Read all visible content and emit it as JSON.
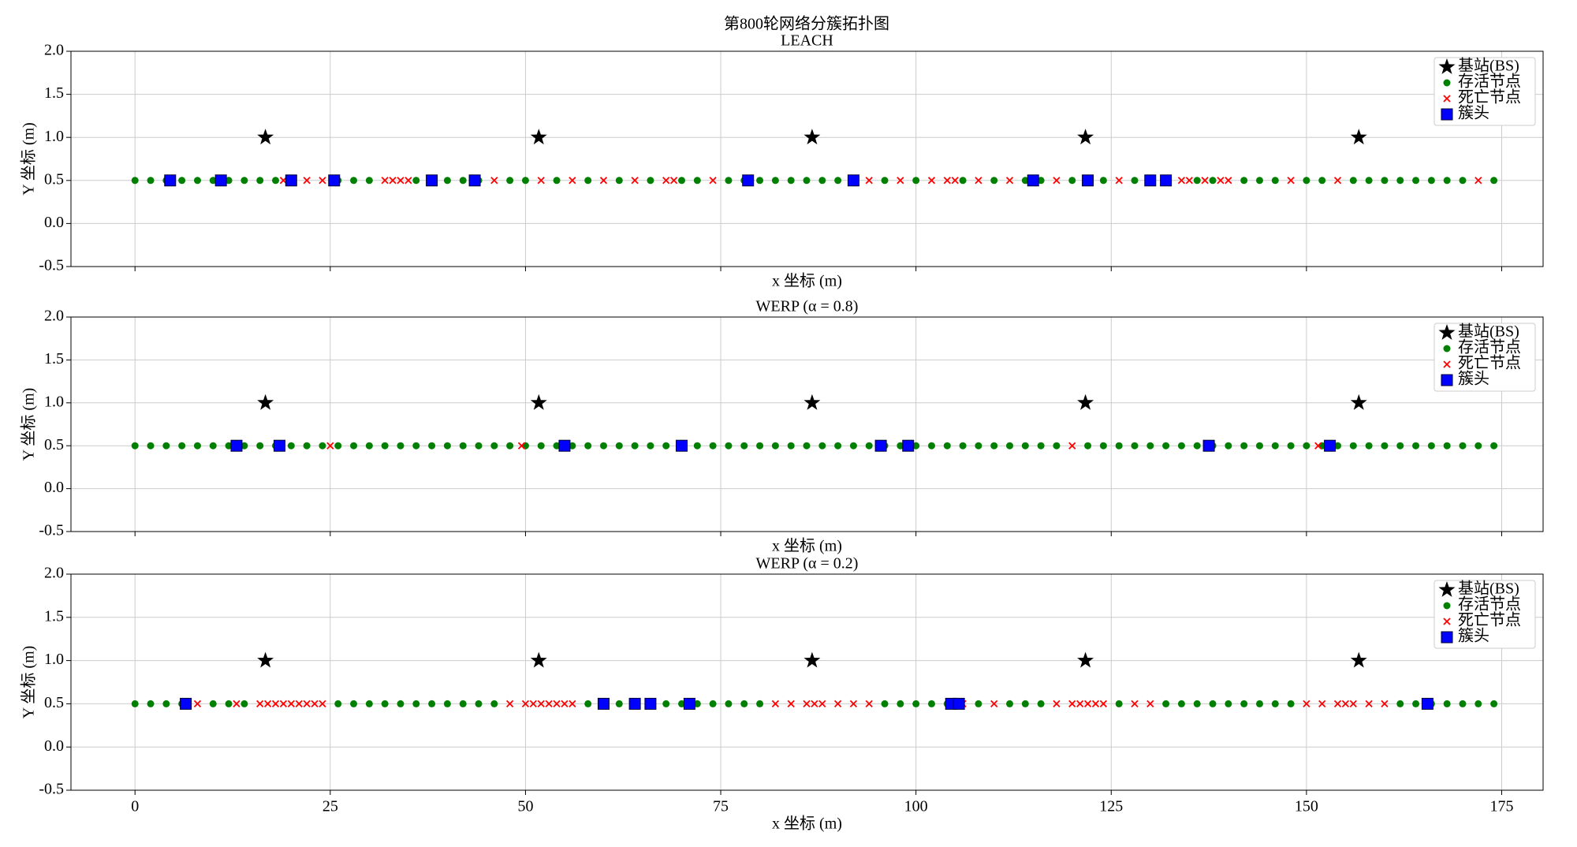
{
  "title": "第800轮网络分簇拓扑图",
  "chart_data": [
    {
      "type": "scatter",
      "title": "LEACH",
      "x_label": "x 坐标 (m)",
      "y_label": "Y 坐标 (m)",
      "xlim": [
        -8.2,
        180.3
      ],
      "xticks": [
        0,
        25,
        50,
        75,
        100,
        125,
        150,
        175
      ],
      "show_xtick_labels": false,
      "ylim": [
        -0.5,
        2.0
      ],
      "yticks": [
        {
          "value": -0.5,
          "label": "-0.5"
        },
        {
          "value": 0,
          "label": "0.0"
        },
        {
          "value": 0.5,
          "label": "0.5"
        },
        {
          "value": 1,
          "label": "1.0"
        },
        {
          "value": 1.5,
          "label": "1.5"
        },
        {
          "value": 2,
          "label": "2.0"
        }
      ],
      "grid": true,
      "legend": "upper right",
      "series": [
        {
          "name": "基站(BS)",
          "color": "#000000",
          "marker": "star",
          "x": [
            16.7,
            51.7,
            86.7,
            121.7,
            156.7
          ],
          "y": [
            1,
            1,
            1,
            1,
            1
          ]
        },
        {
          "name": "存活节点",
          "color": "#008000",
          "marker": "circle",
          "x": [
            0,
            2,
            4,
            6,
            8,
            10,
            12,
            14,
            16,
            18,
            20,
            26,
            28,
            30,
            36,
            38,
            40,
            42,
            44,
            48,
            50,
            54,
            58,
            62,
            66,
            70,
            72,
            76,
            78,
            80,
            82,
            84,
            86,
            88,
            90,
            92,
            96,
            100,
            106,
            110,
            114,
            116,
            120,
            122,
            124,
            128,
            130,
            132,
            136,
            138,
            142,
            144,
            146,
            150,
            152,
            156,
            158,
            160,
            162,
            164,
            166,
            168,
            170,
            174
          ],
          "y": [
            0.5,
            0.5,
            0.5,
            0.5,
            0.5,
            0.5,
            0.5,
            0.5,
            0.5,
            0.5,
            0.5,
            0.5,
            0.5,
            0.5,
            0.5,
            0.5,
            0.5,
            0.5,
            0.5,
            0.5,
            0.5,
            0.5,
            0.5,
            0.5,
            0.5,
            0.5,
            0.5,
            0.5,
            0.5,
            0.5,
            0.5,
            0.5,
            0.5,
            0.5,
            0.5,
            0.5,
            0.5,
            0.5,
            0.5,
            0.5,
            0.5,
            0.5,
            0.5,
            0.5,
            0.5,
            0.5,
            0.5,
            0.5,
            0.5,
            0.5,
            0.5,
            0.5,
            0.5,
            0.5,
            0.5,
            0.5,
            0.5,
            0.5,
            0.5,
            0.5,
            0.5,
            0.5,
            0.5,
            0.5
          ]
        },
        {
          "name": "死亡节点",
          "color": "#ff0000",
          "marker": "x",
          "x": [
            19,
            22,
            24,
            32,
            33,
            34,
            35,
            46,
            52,
            56,
            60,
            64,
            68,
            69,
            74,
            94,
            98,
            102,
            104,
            105,
            108,
            112,
            118,
            126,
            134,
            135,
            137,
            139,
            140,
            148,
            154,
            172
          ],
          "y": [
            0.5,
            0.5,
            0.5,
            0.5,
            0.5,
            0.5,
            0.5,
            0.5,
            0.5,
            0.5,
            0.5,
            0.5,
            0.5,
            0.5,
            0.5,
            0.5,
            0.5,
            0.5,
            0.5,
            0.5,
            0.5,
            0.5,
            0.5,
            0.5,
            0.5,
            0.5,
            0.5,
            0.5,
            0.5,
            0.5,
            0.5,
            0.5
          ]
        },
        {
          "name": "簇头",
          "color": "#0000ff",
          "marker": "square",
          "x": [
            4.5,
            11,
            20,
            25.5,
            38,
            43.5,
            78.5,
            92,
            115,
            122,
            130,
            132
          ],
          "y": [
            0.5,
            0.5,
            0.5,
            0.5,
            0.5,
            0.5,
            0.5,
            0.5,
            0.5,
            0.5,
            0.5,
            0.5
          ]
        }
      ]
    },
    {
      "type": "scatter",
      "title": "WERP (α = 0.8)",
      "x_label": "x 坐标 (m)",
      "y_label": "Y 坐标 (m)",
      "xlim": [
        -8.2,
        180.3
      ],
      "xticks": [
        0,
        25,
        50,
        75,
        100,
        125,
        150,
        175
      ],
      "show_xtick_labels": false,
      "ylim": [
        -0.5,
        2.0
      ],
      "yticks": [
        {
          "value": -0.5,
          "label": "-0.5"
        },
        {
          "value": 0,
          "label": "0.0"
        },
        {
          "value": 0.5,
          "label": "0.5"
        },
        {
          "value": 1,
          "label": "1.0"
        },
        {
          "value": 1.5,
          "label": "1.5"
        },
        {
          "value": 2,
          "label": "2.0"
        }
      ],
      "grid": true,
      "legend": "upper right",
      "series": [
        {
          "name": "基站(BS)",
          "color": "#000000",
          "marker": "star",
          "x": [
            16.7,
            51.7,
            86.7,
            121.7,
            156.7
          ],
          "y": [
            1,
            1,
            1,
            1,
            1
          ]
        },
        {
          "name": "存活节点",
          "color": "#008000",
          "marker": "circle",
          "x": [
            0,
            2,
            4,
            6,
            8,
            10,
            12,
            14,
            16,
            18,
            20,
            22,
            24,
            26,
            28,
            30,
            32,
            34,
            36,
            38,
            40,
            42,
            44,
            46,
            48,
            50,
            52,
            54,
            56,
            58,
            60,
            62,
            64,
            66,
            68,
            70,
            72,
            74,
            76,
            78,
            80,
            82,
            84,
            86,
            88,
            90,
            92,
            94,
            96,
            98,
            100,
            102,
            104,
            106,
            108,
            110,
            112,
            114,
            116,
            118,
            122,
            124,
            126,
            128,
            130,
            132,
            134,
            136,
            138,
            140,
            142,
            144,
            146,
            148,
            150,
            152,
            154,
            156,
            158,
            160,
            162,
            164,
            166,
            168,
            170,
            172,
            174
          ],
          "y": [
            0.5,
            0.5,
            0.5,
            0.5,
            0.5,
            0.5,
            0.5,
            0.5,
            0.5,
            0.5,
            0.5,
            0.5,
            0.5,
            0.5,
            0.5,
            0.5,
            0.5,
            0.5,
            0.5,
            0.5,
            0.5,
            0.5,
            0.5,
            0.5,
            0.5,
            0.5,
            0.5,
            0.5,
            0.5,
            0.5,
            0.5,
            0.5,
            0.5,
            0.5,
            0.5,
            0.5,
            0.5,
            0.5,
            0.5,
            0.5,
            0.5,
            0.5,
            0.5,
            0.5,
            0.5,
            0.5,
            0.5,
            0.5,
            0.5,
            0.5,
            0.5,
            0.5,
            0.5,
            0.5,
            0.5,
            0.5,
            0.5,
            0.5,
            0.5,
            0.5,
            0.5,
            0.5,
            0.5,
            0.5,
            0.5,
            0.5,
            0.5,
            0.5,
            0.5,
            0.5,
            0.5,
            0.5,
            0.5,
            0.5,
            0.5,
            0.5,
            0.5,
            0.5,
            0.5,
            0.5,
            0.5,
            0.5,
            0.5,
            0.5,
            0.5,
            0.5,
            0.5
          ]
        },
        {
          "name": "死亡节点",
          "color": "#ff0000",
          "marker": "x",
          "x": [
            25,
            49.5,
            120,
            151.5
          ],
          "y": [
            0.5,
            0.5,
            0.5,
            0.5
          ]
        },
        {
          "name": "簇头",
          "color": "#0000ff",
          "marker": "square",
          "x": [
            13,
            18.5,
            55,
            70,
            95.5,
            99,
            137.5,
            153
          ],
          "y": [
            0.5,
            0.5,
            0.5,
            0.5,
            0.5,
            0.5,
            0.5,
            0.5
          ]
        }
      ]
    },
    {
      "type": "scatter",
      "title": "WERP (α = 0.2)",
      "x_label": "x 坐标 (m)",
      "y_label": "Y 坐标 (m)",
      "xlim": [
        -8.2,
        180.3
      ],
      "xticks": [
        0,
        25,
        50,
        75,
        100,
        125,
        150,
        175
      ],
      "show_xtick_labels": true,
      "ylim": [
        -0.5,
        2.0
      ],
      "yticks": [
        {
          "value": -0.5,
          "label": "-0.5"
        },
        {
          "value": 0,
          "label": "0.0"
        },
        {
          "value": 0.5,
          "label": "0.5"
        },
        {
          "value": 1,
          "label": "1.0"
        },
        {
          "value": 1.5,
          "label": "1.5"
        },
        {
          "value": 2,
          "label": "2.0"
        }
      ],
      "grid": true,
      "legend": "upper right",
      "series": [
        {
          "name": "基站(BS)",
          "color": "#000000",
          "marker": "star",
          "x": [
            16.7,
            51.7,
            86.7,
            121.7,
            156.7
          ],
          "y": [
            1,
            1,
            1,
            1,
            1
          ]
        },
        {
          "name": "存活节点",
          "color": "#008000",
          "marker": "circle",
          "x": [
            0,
            2,
            4,
            6,
            10,
            12,
            14,
            26,
            28,
            30,
            32,
            34,
            36,
            38,
            40,
            42,
            44,
            46,
            58,
            60,
            62,
            64,
            66,
            68,
            70,
            72,
            74,
            76,
            78,
            80,
            96,
            98,
            100,
            102,
            104,
            108,
            112,
            114,
            116,
            126,
            132,
            134,
            136,
            138,
            140,
            142,
            144,
            146,
            148,
            162,
            164,
            166,
            168,
            170,
            172,
            174
          ],
          "y": [
            0.5,
            0.5,
            0.5,
            0.5,
            0.5,
            0.5,
            0.5,
            0.5,
            0.5,
            0.5,
            0.5,
            0.5,
            0.5,
            0.5,
            0.5,
            0.5,
            0.5,
            0.5,
            0.5,
            0.5,
            0.5,
            0.5,
            0.5,
            0.5,
            0.5,
            0.5,
            0.5,
            0.5,
            0.5,
            0.5,
            0.5,
            0.5,
            0.5,
            0.5,
            0.5,
            0.5,
            0.5,
            0.5,
            0.5,
            0.5,
            0.5,
            0.5,
            0.5,
            0.5,
            0.5,
            0.5,
            0.5,
            0.5,
            0.5,
            0.5,
            0.5,
            0.5,
            0.5,
            0.5,
            0.5,
            0.5
          ]
        },
        {
          "name": "死亡节点",
          "color": "#ff0000",
          "marker": "x",
          "x": [
            8,
            13,
            16,
            17,
            18,
            19,
            20,
            21,
            22,
            23,
            24,
            48,
            50,
            51,
            52,
            53,
            54,
            55,
            56,
            82,
            84,
            86,
            87,
            88,
            90,
            92,
            94,
            106,
            110,
            118,
            120,
            121,
            122,
            123,
            124,
            128,
            130,
            150,
            152,
            154,
            155,
            156,
            158,
            160
          ],
          "y": [
            0.5,
            0.5,
            0.5,
            0.5,
            0.5,
            0.5,
            0.5,
            0.5,
            0.5,
            0.5,
            0.5,
            0.5,
            0.5,
            0.5,
            0.5,
            0.5,
            0.5,
            0.5,
            0.5,
            0.5,
            0.5,
            0.5,
            0.5,
            0.5,
            0.5,
            0.5,
            0.5,
            0.5,
            0.5,
            0.5,
            0.5,
            0.5,
            0.5,
            0.5,
            0.5,
            0.5,
            0.5,
            0.5,
            0.5,
            0.5,
            0.5,
            0.5,
            0.5,
            0.5
          ]
        },
        {
          "name": "簇头",
          "color": "#0000ff",
          "marker": "square",
          "x": [
            6.5,
            60,
            64,
            66,
            71,
            104.5,
            105.5,
            165.5
          ],
          "y": [
            0.5,
            0.5,
            0.5,
            0.5,
            0.5,
            0.5,
            0.5,
            0.5
          ]
        }
      ]
    }
  ]
}
